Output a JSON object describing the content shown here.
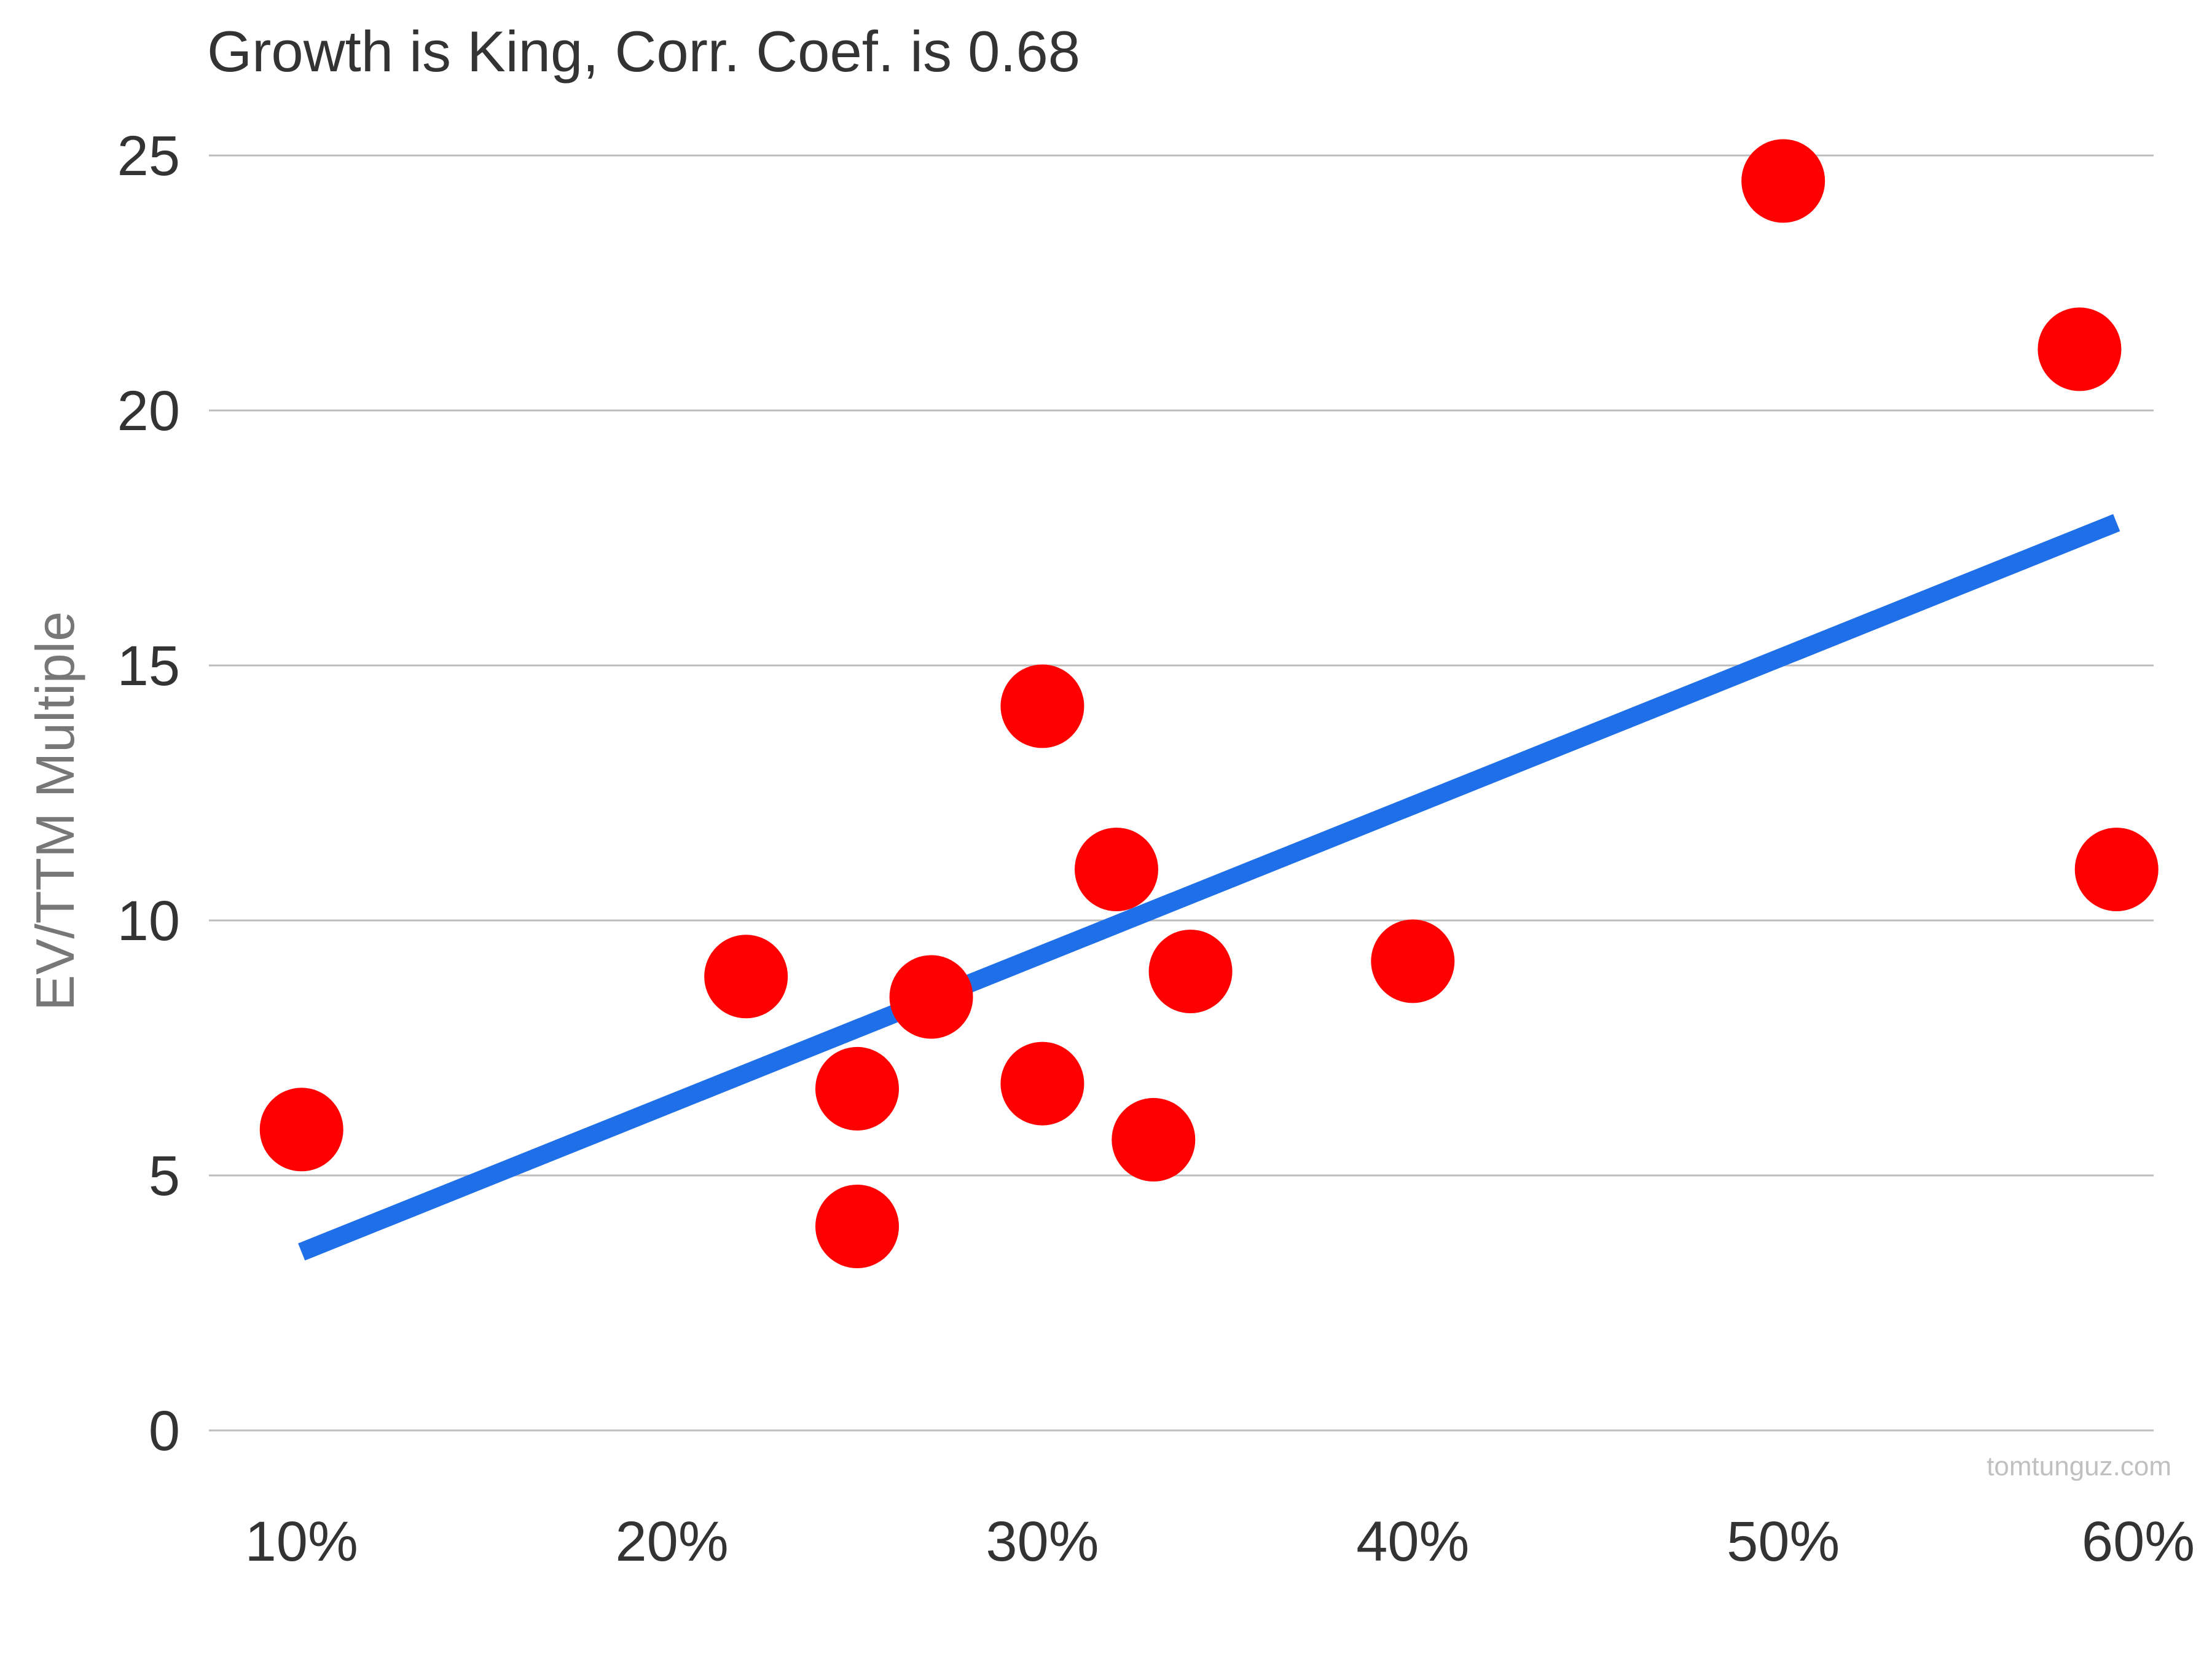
{
  "chart_data": {
    "type": "scatter",
    "title": "Growth is King, Corr. Coef. is 0.68",
    "xlabel": "",
    "ylabel": "EV/TTM Multiple",
    "x_ticks": [
      "10%",
      "20%",
      "30%",
      "40%",
      "50%",
      "60%"
    ],
    "y_ticks": [
      "0",
      "5",
      "10",
      "15",
      "20",
      "25"
    ],
    "xlim": [
      0.075,
      0.6
    ],
    "ylim": [
      0,
      25
    ],
    "grid": "horizontal",
    "series": [
      {
        "type": "scatter",
        "color": "#ff0000",
        "points": [
          {
            "x": 0.1,
            "y": 5.9
          },
          {
            "x": 0.22,
            "y": 8.9
          },
          {
            "x": 0.25,
            "y": 6.7
          },
          {
            "x": 0.25,
            "y": 4.0
          },
          {
            "x": 0.27,
            "y": 8.5
          },
          {
            "x": 0.3,
            "y": 14.2
          },
          {
            "x": 0.3,
            "y": 6.8
          },
          {
            "x": 0.32,
            "y": 11.0
          },
          {
            "x": 0.33,
            "y": 5.7
          },
          {
            "x": 0.34,
            "y": 9.0
          },
          {
            "x": 0.4,
            "y": 9.2
          },
          {
            "x": 0.5,
            "y": 24.5
          },
          {
            "x": 0.58,
            "y": 21.2
          },
          {
            "x": 0.59,
            "y": 11.0
          }
        ]
      },
      {
        "type": "trendline",
        "color": "#1f6fe8",
        "points": [
          {
            "x": 0.1,
            "y": 3.5
          },
          {
            "x": 0.59,
            "y": 17.8
          }
        ]
      }
    ]
  },
  "watermark": "tomtunguz.com"
}
